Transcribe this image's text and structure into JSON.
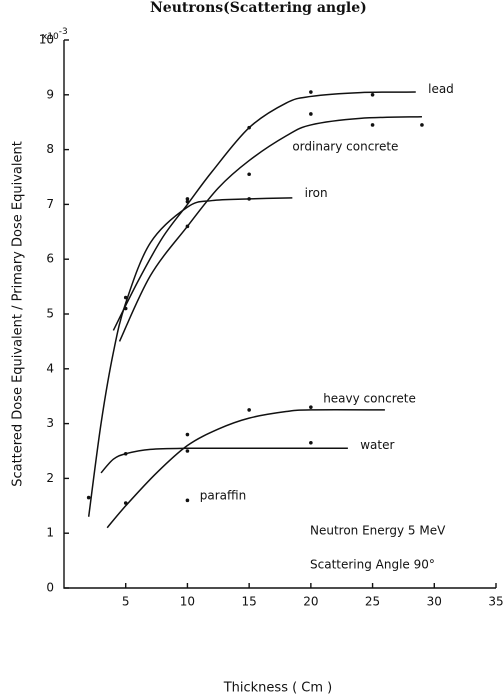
{
  "chart_data": {
    "type": "line",
    "title": "Neutrons(Scattering angle)",
    "x_label": "Thickness  ( Cm )",
    "y_label": "Scattered Dose Equivalent / Primary Dose Equivalent",
    "y_multiplier": {
      "base": "x10",
      "exponent": "-3"
    },
    "annotations": [
      "Neutron Energy  5 MeV",
      "Scattering Angle  90°"
    ],
    "xlim": [
      0,
      35
    ],
    "xticks": [
      5,
      10,
      15,
      20,
      25,
      30,
      35
    ],
    "ylim": [
      0,
      10
    ],
    "yticks": [
      0,
      1,
      2,
      3,
      4,
      5,
      6,
      7,
      8,
      9,
      10
    ],
    "color": "#111111",
    "series": [
      {
        "name": "lead",
        "x": [
          4,
          6,
          8,
          10,
          12,
          15,
          18,
          20,
          24,
          28.5
        ],
        "values": [
          4.7,
          5.6,
          6.4,
          7.0,
          7.6,
          8.4,
          8.85,
          8.97,
          9.04,
          9.05
        ],
        "points_x": [
          5,
          10,
          15,
          20,
          25
        ],
        "points_y": [
          5.3,
          7.1,
          8.4,
          9.05,
          9.0
        ]
      },
      {
        "name": "ordinary concrete",
        "x": [
          4.5,
          7,
          10,
          12.5,
          15,
          18,
          20,
          24,
          29
        ],
        "values": [
          4.5,
          5.7,
          6.6,
          7.3,
          7.8,
          8.25,
          8.45,
          8.57,
          8.6
        ],
        "points_x": [
          5,
          10,
          15,
          20,
          25,
          29
        ],
        "points_y": [
          5.1,
          6.6,
          7.55,
          8.65,
          8.45,
          8.45
        ]
      },
      {
        "name": "iron",
        "x": [
          2,
          3,
          4,
          5,
          7,
          10,
          12,
          15,
          18.5
        ],
        "values": [
          1.3,
          3.0,
          4.3,
          5.2,
          6.3,
          6.95,
          7.07,
          7.1,
          7.12
        ],
        "points_x": [
          2,
          10,
          15
        ],
        "points_y": [
          1.65,
          7.05,
          7.1
        ]
      },
      {
        "name": "heavy concrete",
        "x": [
          3.5,
          5,
          7.5,
          10,
          12.5,
          15,
          18,
          20,
          26
        ],
        "values": [
          1.1,
          1.5,
          2.1,
          2.6,
          2.9,
          3.1,
          3.22,
          3.25,
          3.25
        ],
        "points_x": [
          5,
          10,
          15,
          20
        ],
        "points_y": [
          1.55,
          2.8,
          3.25,
          3.3
        ]
      },
      {
        "name": "water",
        "x": [
          3,
          4,
          5,
          7,
          10,
          15,
          23
        ],
        "values": [
          2.1,
          2.35,
          2.45,
          2.53,
          2.55,
          2.55,
          2.55
        ],
        "points_x": [
          5,
          10,
          20
        ],
        "points_y": [
          2.45,
          2.5,
          2.65
        ]
      },
      {
        "name": "paraffin",
        "x": [],
        "values": [],
        "points_x": [
          10
        ],
        "points_y": [
          1.6
        ]
      }
    ]
  }
}
